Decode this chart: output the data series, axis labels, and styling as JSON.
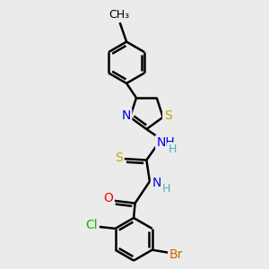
{
  "background_color": "#ebebeb",
  "bond_color": "#000000",
  "bond_width": 1.8,
  "atom_colors": {
    "C": "#000000",
    "H": "#4db3b3",
    "N": "#0000ee",
    "S": "#bbaa00",
    "O": "#ff0000",
    "Cl": "#00bb00",
    "Br": "#cc6600",
    "CH3": "#000000"
  },
  "font_size": 10,
  "fig_width": 3.0,
  "fig_height": 3.0,
  "dpi": 100
}
